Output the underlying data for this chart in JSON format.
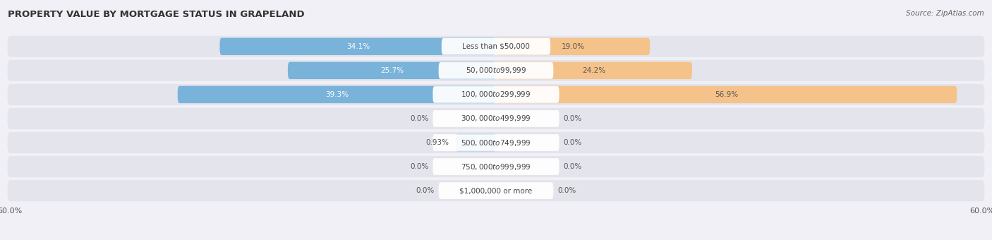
{
  "title": "PROPERTY VALUE BY MORTGAGE STATUS IN GRAPELAND",
  "source": "Source: ZipAtlas.com",
  "categories": [
    "Less than $50,000",
    "$50,000 to $99,999",
    "$100,000 to $299,999",
    "$300,000 to $499,999",
    "$500,000 to $749,999",
    "$750,000 to $999,999",
    "$1,000,000 or more"
  ],
  "without_mortgage": [
    34.1,
    25.7,
    39.3,
    0.0,
    0.93,
    0.0,
    0.0
  ],
  "with_mortgage": [
    19.0,
    24.2,
    56.9,
    0.0,
    0.0,
    0.0,
    0.0
  ],
  "without_mortgage_color": "#7ab3d9",
  "with_mortgage_color": "#f5c28a",
  "x_max": 60.0,
  "row_bg_color": "#e4e4ec",
  "fig_bg_color": "#f0f0f6",
  "center_label_bg": "#ffffff",
  "small_bar_width": 5.0,
  "bar_value_white_threshold": 8.0
}
